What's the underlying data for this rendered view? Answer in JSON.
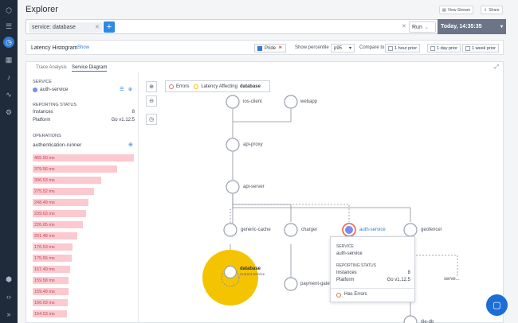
{
  "sidebar": {
    "icons": [
      "menu-icon",
      "history-icon",
      "grid-icon",
      "bell-icon",
      "pulse-icon",
      "settings-icon",
      "package-icon",
      "code-icon",
      "collapse-icon"
    ]
  },
  "header": {
    "title": "Explorer",
    "view_stream": "View Stream",
    "share": "Share"
  },
  "query": {
    "chip": "service: database",
    "run": "Run",
    "time": "Today, 14:35:35"
  },
  "latency": {
    "title": "Latency Histogram",
    "show": "Show",
    "pride": "Pride",
    "show_percentile": "Show percentile",
    "percentile": "p95",
    "compare_to": "Compare to",
    "priors": [
      "1 hour prior",
      "1 day prior",
      "1 week prior"
    ]
  },
  "tabs": [
    "Trace Analysis",
    "Service Diagram"
  ],
  "left": {
    "service_label": "SERVICE",
    "service": "auth-service",
    "reporting_label": "REPORTING STATUS",
    "instances_label": "Instances",
    "instances": "8",
    "platform_label": "Platform",
    "platform": "Go v1.12.5",
    "operations_label": "OPERATIONS",
    "operation": "authentication-runner",
    "latencies": [
      "455.50 ms",
      "379.56 ms",
      "306.53 ms",
      "275.52 ms",
      "248.49 ms",
      "239.63 ms",
      "226.65 ms",
      "201.48 ms",
      "176.53 ms",
      "175.56 ms",
      "167.49 ms",
      "159.58 ms",
      "159.49 ms",
      "156.63 ms",
      "154.53 ms"
    ]
  },
  "diagram": {
    "legend_errors": "Errors",
    "legend_latency": "Latency Affecting",
    "legend_service": "database",
    "nodes": [
      "ios-client",
      "webapp",
      "api-proxy",
      "api-server",
      "generic-cache",
      "charger",
      "auth-service",
      "geofencer",
      "database",
      "Current Service",
      "payment-gatewa...",
      "serve...",
      "tile-db"
    ]
  },
  "tooltip": {
    "service_label": "SERVICE",
    "service": "auth-service",
    "reporting_label": "REPORTING STATUS",
    "instances_label": "Instances",
    "instances": "8",
    "platform_label": "Platform",
    "platform": "Go v1.12.5",
    "has_errors": "Has Errors"
  },
  "colors": {
    "accent": "#2e7ad6",
    "error": "#e8735a",
    "latency": "#f5c400",
    "bar": "#fbc9cf"
  }
}
